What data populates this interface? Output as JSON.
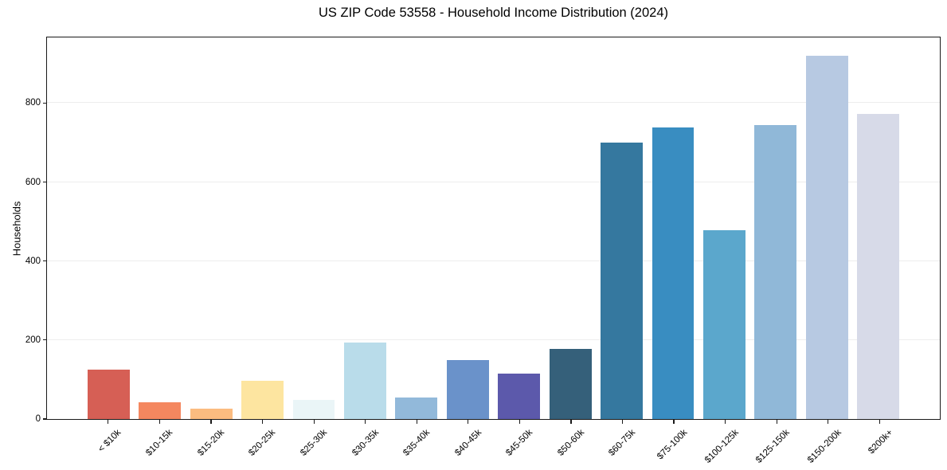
{
  "chart_data": {
    "type": "bar",
    "title": "US ZIP Code 53558 - Household Income Distribution (2024)",
    "xlabel": "",
    "ylabel": "Households",
    "categories": [
      "< $10k",
      "$10-15k",
      "$15-20k",
      "$20-25k",
      "$25-30k",
      "$30-35k",
      "$35-40k",
      "$40-45k",
      "$45-50k",
      "$50-60k",
      "$60-75k",
      "$75-100k",
      "$100-125k",
      "$125-150k",
      "$150-200k",
      "$200k+"
    ],
    "values": [
      125,
      42,
      26,
      96,
      48,
      193,
      54,
      150,
      114,
      178,
      700,
      738,
      478,
      745,
      920,
      772
    ],
    "bar_colors": [
      "#d65f55",
      "#f4875f",
      "#fbbc80",
      "#fde5a0",
      "#eaf5f7",
      "#b9dcea",
      "#92b9da",
      "#6a92ca",
      "#5c59ab",
      "#35607a",
      "#35789f",
      "#398dc1",
      "#5ba7cc",
      "#90b8d8",
      "#b7c9e2",
      "#d7dae8"
    ],
    "ylim": [
      0,
      966
    ],
    "yticks": [
      0,
      200,
      400,
      600,
      800
    ],
    "grid": "horizontal",
    "gridline_color": "#ededed",
    "legend": "none",
    "background_color": "#ffffff",
    "axis_color": "#1a1a1a"
  }
}
